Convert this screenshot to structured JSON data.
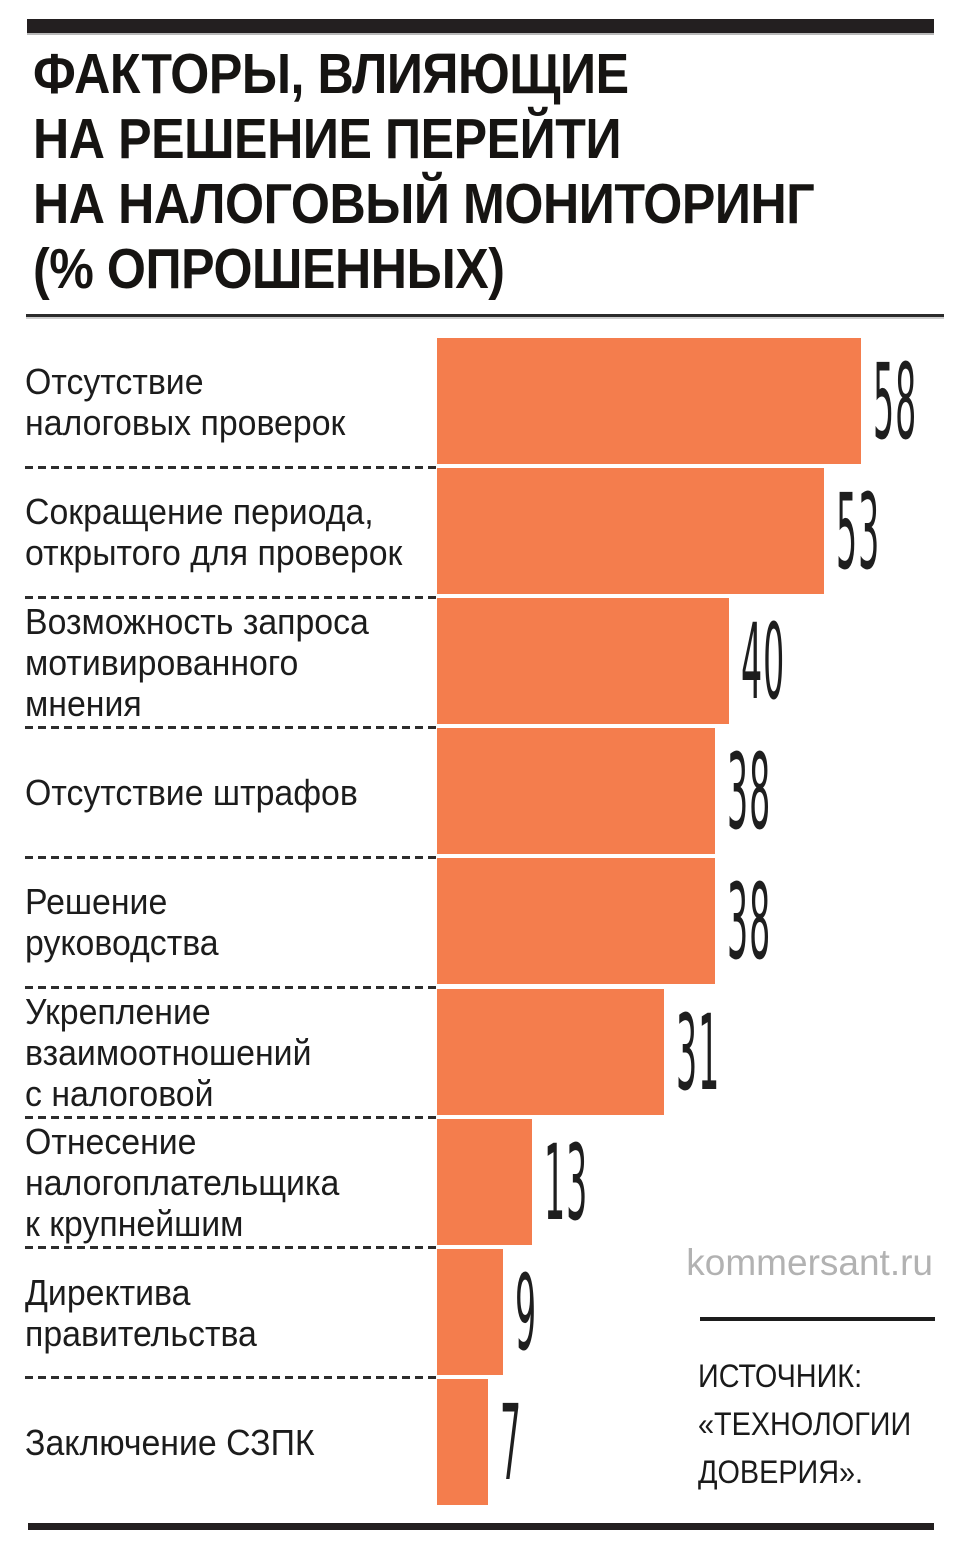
{
  "header": {
    "title_lines": [
      "ФАКТОРЫ, ВЛИЯЮЩИЕ",
      "НА РЕШЕНИЕ ПЕРЕЙТИ",
      "НА НАЛОГОВЫЙ МОНИТОРИНГ",
      "(% ОПРОШЕННЫХ)"
    ]
  },
  "chart_data": {
    "type": "bar",
    "orientation": "horizontal",
    "title": "ФАКТОРЫ, ВЛИЯЮЩИЕ НА РЕШЕНИЕ ПЕРЕЙТИ НА НАЛОГОВЫЙ МОНИТОРИНГ (% ОПРОШЕННЫХ)",
    "categories": [
      "Отсутствие\nналоговых проверок",
      "Сокращение периода,\nоткрытого для проверок",
      "Возможность запроса\nмотивированного\nмнения",
      "Отсутствие штрафов",
      "Решение\nруководства",
      "Укрепление\nвзаимоотношений\nс налоговой",
      "Отнесение\nналогоплательщика\nк крупнейшим",
      "Директива\nправительства",
      "Заключение СЗПК"
    ],
    "values": [
      58,
      53,
      40,
      38,
      38,
      31,
      13,
      9,
      7
    ],
    "unit": "% опрошенных",
    "xlim": [
      0,
      60
    ],
    "grid": false,
    "value_label_position": "right",
    "bar_color": "#f47d4d"
  },
  "footer": {
    "watermark": "kommersant.ru",
    "source_lines": [
      "ИСТОЧНИК:",
      "«ТЕХНОЛОГИИ",
      "ДОВЕРИЯ»."
    ]
  },
  "colors": {
    "bar": "#f47d4d",
    "ink": "#1c1c1c",
    "rule": "#231f20",
    "watermark": "#b2b2b2"
  }
}
